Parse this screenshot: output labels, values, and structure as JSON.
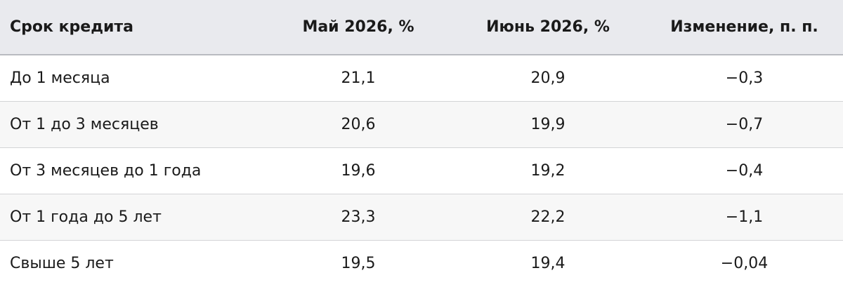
{
  "table": {
    "header": [
      "Срок кредита",
      "Май 2026, %",
      "Июнь 2026, %",
      "Изменение, п. п."
    ],
    "rows": [
      [
        "До 1 месяца",
        "21,1",
        "20,9",
        "−0,3"
      ],
      [
        "От 1 до 3 месяцев",
        "20,6",
        "19,9",
        "−0,7"
      ],
      [
        "От 3 месяцев до 1 года",
        "19,6",
        "19,2",
        "−0,4"
      ],
      [
        "От 1 года до 5 лет",
        "23,3",
        "22,2",
        "−1,1"
      ],
      [
        "Свыше 5 лет",
        "19,5",
        "19,4",
        "−0,04"
      ]
    ]
  }
}
